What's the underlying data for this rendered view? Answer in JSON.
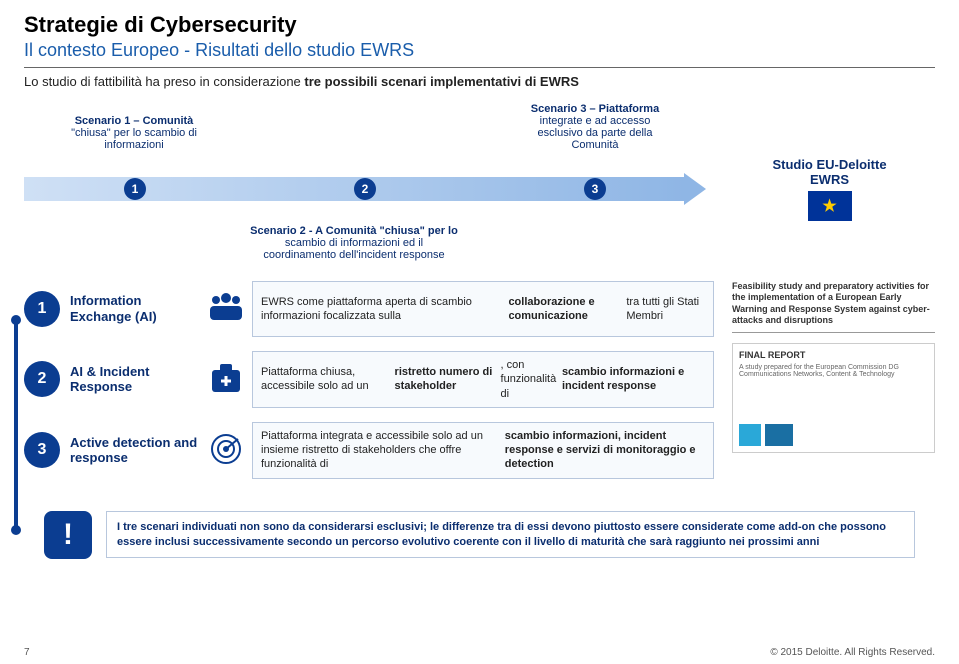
{
  "title": "Strategie di Cybersecurity",
  "subtitle": "Il contesto Europeo - Risultati dello studio EWRS",
  "intro_pre": "Lo studio di fattibilità ha preso in considerazione ",
  "intro_bold": "tre possibili scenari implementativi di EWRS",
  "scenario1_title": "Scenario 1 – Comunità",
  "scenario1_line2": "\"chiusa\" per lo scambio di",
  "scenario1_line3": "informazioni",
  "scenario3_title": "Scenario 3 – Piattaforma",
  "scenario3_line2": "integrate e ad accesso",
  "scenario3_line3": "esclusivo da parte della",
  "scenario3_line4": "Comunità",
  "scenario2_title": "Scenario 2 - A Comunità \"chiusa\" per lo",
  "scenario2_line2": "scambio di informazioni ed il",
  "scenario2_line3": "coordinamento dell'incident response",
  "nums": {
    "n1": "1",
    "n2": "2",
    "n3": "3"
  },
  "studio_box_l1": "Studio EU-Deloitte",
  "studio_box_l2": "EWRS",
  "items": [
    {
      "num": "1",
      "title": "Information Exchange (AI)",
      "desc": "EWRS come piattaforma aperta di scambio informazioni focalizzata sulla <b>collaborazione e comunicazione</b> tra tutti gli Stati Membri"
    },
    {
      "num": "2",
      "title": "AI & Incident Response",
      "desc": "Piattaforma chiusa, accessibile solo ad un <b>ristretto numero di stakeholder</b>, con funzionalità di <b>scambio informazioni e incident response</b>"
    },
    {
      "num": "3",
      "title": "Active detection and response",
      "desc": "Piattaforma integrata e accessibile solo ad un insieme ristretto di stakeholders che offre funzionalità di <b>scambio informazioni, incident response e servizi di monitoraggio e detection</b>"
    }
  ],
  "feasibility_title": "Feasibility study and preparatory activities for the implementation of a European Early Warning and Response System against cyber-attacks and disruptions",
  "final_report_label": "FINAL REPORT",
  "final_report_sub": "A study prepared for the European Commission DG Communications Networks, Content & Technology",
  "warning": "I tre scenari individuati non sono da considerarsi esclusivi; le differenze tra di essi devono piuttosto essere considerate come add-on che possono essere inclusi successivamente secondo un percorso evolutivo coerente con il livello di maturità che sarà raggiunto nei prossimi anni",
  "footer_page": "7",
  "footer_copy": "© 2015 Deloitte. All Rights Reserved.",
  "colors": {
    "brand_blue": "#0b3d91",
    "text_blue": "#0b2e6f",
    "subtitle_blue": "#1a5dab",
    "arrow_light": "#cfe0f5",
    "arrow_dark": "#8fb6e5",
    "box_border": "#b8c7dd",
    "box_bg": "#f7fafd",
    "eu_flag_bg": "#003399",
    "eu_flag_star": "#ffcc00"
  }
}
